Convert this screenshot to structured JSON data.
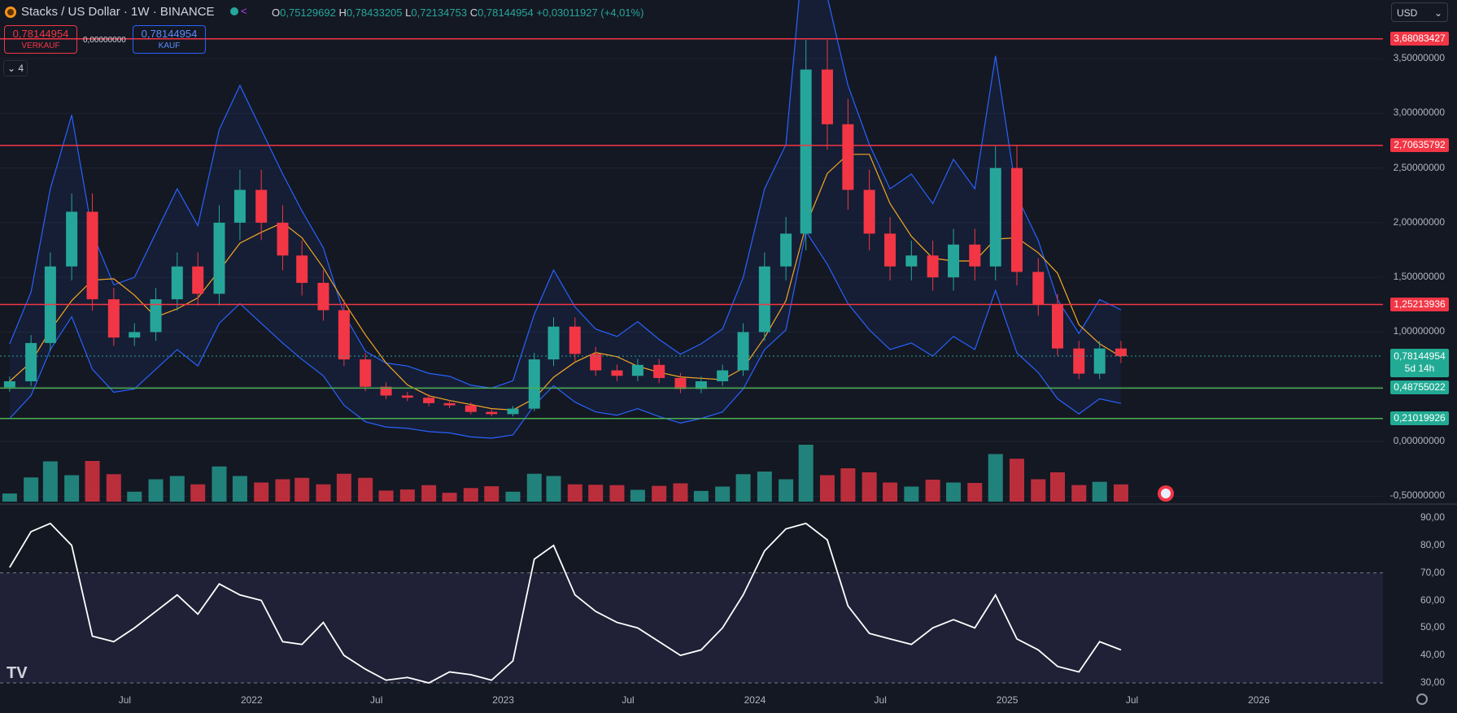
{
  "header": {
    "title": "Stacks / US Dollar · 1W · BINANCE",
    "ohlc": {
      "o_label": "O",
      "o": "0,75129692",
      "h_label": "H",
      "h": "0,78433205",
      "l_label": "L",
      "l": "0,72134753",
      "c_label": "C",
      "c": "0,78144954",
      "change": "+0,03011927 (+4,01%)"
    },
    "sell_price": "0,78144954",
    "sell_label": "VERKAUF",
    "spread": "0,00000000",
    "buy_price": "0,78144954",
    "buy_label": "KAUF",
    "indicator_count": "4",
    "currency": "USD"
  },
  "price_axis": [
    "3,50000000",
    "3,00000000",
    "2,50000000",
    "2,00000000",
    "1,50000000",
    "1,00000000",
    "0,00000000",
    "-0,50000000"
  ],
  "rsi_axis": [
    "90,00",
    "80,00",
    "70,00",
    "60,00",
    "50,00",
    "40,00",
    "30,00"
  ],
  "levels": [
    {
      "label": "3,68083427",
      "value": 3.68083427,
      "kind": "resistance"
    },
    {
      "label": "2,70635792",
      "value": 2.70635792,
      "kind": "resistance"
    },
    {
      "label": "1,25213936",
      "value": 1.25213936,
      "kind": "resistance"
    },
    {
      "label": "0,48755022",
      "value": 0.48755022,
      "kind": "support"
    },
    {
      "label": "0,21019926",
      "value": 0.21019926,
      "kind": "support"
    }
  ],
  "last_price": {
    "label": "0,78144954",
    "countdown": "5d 14h"
  },
  "x_axis": [
    "Jul",
    "2022",
    "Jul",
    "2023",
    "Jul",
    "2024",
    "Jul",
    "2025",
    "Jul",
    "2026"
  ],
  "colors": {
    "up": "#26a69a",
    "down": "#f23645",
    "bb": "#2962ff",
    "ma": "#f5a623",
    "rsi": "#ffffff",
    "support": "#4caf50",
    "resistance": "#f23645"
  },
  "chart_data": {
    "type": "candlestick",
    "interval": "1W",
    "x_range": [
      "2021-01",
      "2026-06"
    ],
    "y_range": [
      -0.55,
      3.85
    ],
    "rsi_range": [
      30,
      90
    ],
    "rsi_bands": [
      30,
      70
    ],
    "price_close": [
      [
        "2021-01",
        0.55
      ],
      [
        "2021-02",
        0.9
      ],
      [
        "2021-03",
        1.6
      ],
      [
        "2021-04",
        2.1
      ],
      [
        "2021-05",
        1.3
      ],
      [
        "2021-06",
        0.95
      ],
      [
        "2021-07",
        1.0
      ],
      [
        "2021-08",
        1.3
      ],
      [
        "2021-09",
        1.6
      ],
      [
        "2021-10",
        1.35
      ],
      [
        "2021-11",
        2.0
      ],
      [
        "2021-12",
        2.3
      ],
      [
        "2022-01",
        2.0
      ],
      [
        "2022-02",
        1.7
      ],
      [
        "2022-03",
        1.45
      ],
      [
        "2022-04",
        1.2
      ],
      [
        "2022-05",
        0.75
      ],
      [
        "2022-06",
        0.5
      ],
      [
        "2022-07",
        0.42
      ],
      [
        "2022-08",
        0.4
      ],
      [
        "2022-09",
        0.35
      ],
      [
        "2022-10",
        0.33
      ],
      [
        "2022-11",
        0.27
      ],
      [
        "2022-12",
        0.25
      ],
      [
        "2023-01",
        0.3
      ],
      [
        "2023-02",
        0.75
      ],
      [
        "2023-03",
        1.05
      ],
      [
        "2023-04",
        0.8
      ],
      [
        "2023-05",
        0.65
      ],
      [
        "2023-06",
        0.6
      ],
      [
        "2023-07",
        0.7
      ],
      [
        "2023-08",
        0.58
      ],
      [
        "2023-09",
        0.48
      ],
      [
        "2023-10",
        0.55
      ],
      [
        "2023-11",
        0.65
      ],
      [
        "2023-12",
        1.0
      ],
      [
        "2024-01",
        1.6
      ],
      [
        "2024-02",
        1.9
      ],
      [
        "2024-03",
        3.4
      ],
      [
        "2024-04",
        2.9
      ],
      [
        "2024-05",
        2.3
      ],
      [
        "2024-06",
        1.9
      ],
      [
        "2024-07",
        1.6
      ],
      [
        "2024-08",
        1.7
      ],
      [
        "2024-09",
        1.5
      ],
      [
        "2024-10",
        1.8
      ],
      [
        "2024-11",
        1.6
      ],
      [
        "2024-12",
        2.5
      ],
      [
        "2025-01",
        1.55
      ],
      [
        "2025-02",
        1.25
      ],
      [
        "2025-03",
        0.85
      ],
      [
        "2025-04",
        0.62
      ],
      [
        "2025-05",
        0.85
      ],
      [
        "2025-06",
        0.78
      ]
    ],
    "rsi": [
      [
        "2021-01",
        72
      ],
      [
        "2021-02",
        85
      ],
      [
        "2021-03",
        88
      ],
      [
        "2021-04",
        80
      ],
      [
        "2021-05",
        47
      ],
      [
        "2021-06",
        45
      ],
      [
        "2021-07",
        50
      ],
      [
        "2021-08",
        56
      ],
      [
        "2021-09",
        62
      ],
      [
        "2021-10",
        55
      ],
      [
        "2021-11",
        66
      ],
      [
        "2021-12",
        62
      ],
      [
        "2022-01",
        60
      ],
      [
        "2022-02",
        45
      ],
      [
        "2022-03",
        44
      ],
      [
        "2022-04",
        52
      ],
      [
        "2022-05",
        40
      ],
      [
        "2022-06",
        35
      ],
      [
        "2022-07",
        31
      ],
      [
        "2022-08",
        32
      ],
      [
        "2022-09",
        30
      ],
      [
        "2022-10",
        34
      ],
      [
        "2022-11",
        33
      ],
      [
        "2022-12",
        31
      ],
      [
        "2023-01",
        38
      ],
      [
        "2023-02",
        75
      ],
      [
        "2023-03",
        80
      ],
      [
        "2023-04",
        62
      ],
      [
        "2023-05",
        56
      ],
      [
        "2023-06",
        52
      ],
      [
        "2023-07",
        50
      ],
      [
        "2023-08",
        45
      ],
      [
        "2023-09",
        40
      ],
      [
        "2023-10",
        42
      ],
      [
        "2023-11",
        50
      ],
      [
        "2023-12",
        62
      ],
      [
        "2024-01",
        78
      ],
      [
        "2024-02",
        86
      ],
      [
        "2024-03",
        88
      ],
      [
        "2024-04",
        82
      ],
      [
        "2024-05",
        58
      ],
      [
        "2024-06",
        48
      ],
      [
        "2024-07",
        46
      ],
      [
        "2024-08",
        44
      ],
      [
        "2024-09",
        50
      ],
      [
        "2024-10",
        53
      ],
      [
        "2024-11",
        50
      ],
      [
        "2024-12",
        62
      ],
      [
        "2025-01",
        46
      ],
      [
        "2025-02",
        42
      ],
      [
        "2025-03",
        36
      ],
      [
        "2025-04",
        34
      ],
      [
        "2025-05",
        45
      ],
      [
        "2025-06",
        42
      ]
    ]
  }
}
